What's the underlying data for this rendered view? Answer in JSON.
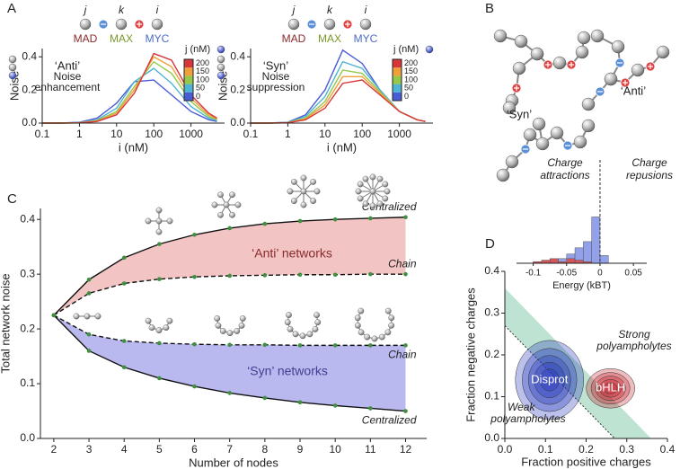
{
  "panel_labels": [
    "A",
    "B",
    "C",
    "D"
  ],
  "diagram_b": {
    "labels": [
      "‘Syn’",
      "‘Anti’"
    ]
  },
  "chart_data": [
    {
      "type": "line",
      "xlabel": "i (nM)",
      "ylabel": "Noise",
      "xlog": true,
      "x": [
        0.1,
        0.3,
        1,
        3,
        10,
        30,
        100,
        300,
        1000,
        3000,
        5000
      ],
      "xlim": [
        0.1,
        8000
      ],
      "xticks": [
        0.1,
        1,
        10,
        100,
        1000
      ],
      "ylim": [
        0,
        0.45
      ],
      "yticks": [
        {
          "value": 0,
          "label": "0.0"
        },
        0.2,
        0.4
      ],
      "legend": "colorbar",
      "legend_title": "j (nM)",
      "annotations": [
        "‘Anti’",
        "Noise",
        "enhancement"
      ],
      "schematic_labels": [
        "j",
        "k",
        "i",
        "MAD",
        "MAX",
        "MYC"
      ],
      "series": [
        {
          "name": "0",
          "color": "#4a5bd6",
          "values": [
            0,
            0,
            0.005,
            0.03,
            0.12,
            0.25,
            0.26,
            0.17,
            0.07,
            0.02,
            0.01
          ]
        },
        {
          "name": "50",
          "color": "#4fb3d3",
          "values": [
            0,
            0,
            0.003,
            0.02,
            0.09,
            0.25,
            0.33,
            0.24,
            0.1,
            0.03,
            0.015
          ]
        },
        {
          "name": "100",
          "color": "#95c84a",
          "values": [
            0,
            0,
            0.002,
            0.015,
            0.07,
            0.22,
            0.37,
            0.3,
            0.13,
            0.04,
            0.02
          ]
        },
        {
          "name": "150",
          "color": "#efa03a",
          "values": [
            0,
            0,
            0.002,
            0.012,
            0.06,
            0.2,
            0.4,
            0.34,
            0.15,
            0.05,
            0.025
          ]
        },
        {
          "name": "200",
          "color": "#d8373a",
          "values": [
            0,
            0,
            0.001,
            0.01,
            0.05,
            0.18,
            0.42,
            0.38,
            0.17,
            0.06,
            0.03
          ]
        }
      ]
    },
    {
      "type": "line",
      "xlabel": "i (nM)",
      "ylabel": "Noise",
      "xlog": true,
      "x": [
        0.1,
        0.3,
        1,
        3,
        10,
        30,
        100,
        300,
        1000,
        3000,
        5000
      ],
      "xlim": [
        0.1,
        8000
      ],
      "xticks": [
        0.1,
        1,
        10,
        100,
        1000
      ],
      "ylim": [
        0,
        0.45
      ],
      "yticks": [
        {
          "value": 0,
          "label": "0.0"
        },
        0.2,
        0.4
      ],
      "legend": "colorbar",
      "legend_title": "j (nM)",
      "annotations": [
        "‘Syn’",
        "Noise",
        "suppression"
      ],
      "schematic_labels": [
        "j",
        "k",
        "i",
        "MAD",
        "MAX",
        "MYC"
      ],
      "series": [
        {
          "name": "0",
          "color": "#4a5bd6",
          "values": [
            0,
            0,
            0.005,
            0.05,
            0.2,
            0.44,
            0.36,
            0.2,
            0.07,
            0.02,
            0.01
          ]
        },
        {
          "name": "50",
          "color": "#4fb3d3",
          "values": [
            0,
            0,
            0.004,
            0.04,
            0.16,
            0.37,
            0.33,
            0.2,
            0.07,
            0.02,
            0.01
          ]
        },
        {
          "name": "100",
          "color": "#95c84a",
          "values": [
            0,
            0,
            0.003,
            0.03,
            0.13,
            0.32,
            0.3,
            0.19,
            0.07,
            0.02,
            0.01
          ]
        },
        {
          "name": "150",
          "color": "#efa03a",
          "values": [
            0,
            0,
            0.002,
            0.025,
            0.11,
            0.28,
            0.28,
            0.18,
            0.07,
            0.02,
            0.01
          ]
        },
        {
          "name": "200",
          "color": "#d8373a",
          "values": [
            0,
            0,
            0.002,
            0.02,
            0.09,
            0.24,
            0.26,
            0.17,
            0.07,
            0.02,
            0.01
          ]
        }
      ]
    },
    {
      "type": "line",
      "xlabel": "Number of nodes",
      "ylabel": "Total network noise",
      "x": [
        2,
        3,
        4,
        5,
        6,
        7,
        8,
        9,
        10,
        11,
        12
      ],
      "xlim": [
        1.62,
        12.6
      ],
      "xticks": [
        2,
        3,
        4,
        5,
        6,
        7,
        8,
        9,
        10,
        11,
        12
      ],
      "ylim": [
        0,
        0.42
      ],
      "yticks": [
        {
          "value": 0,
          "label": "0.0"
        },
        0.1,
        0.2,
        0.3,
        0.4
      ],
      "marker_color": "#3f8f3f",
      "fill_colors": [
        "#f2c4c4",
        "#b9b9f0"
      ],
      "annotations": [
        "‘Anti’ networks",
        "‘Syn’ networks"
      ],
      "series": [
        {
          "name": "Centralized",
          "color": "#111111",
          "dash": false,
          "values": [
            0.225,
            0.29,
            0.33,
            0.355,
            0.372,
            0.384,
            0.392,
            0.397,
            0.4,
            0.402,
            0.404
          ]
        },
        {
          "name": "Chain",
          "color": "#111111",
          "dash": true,
          "values": [
            0.225,
            0.265,
            0.283,
            0.291,
            0.295,
            0.297,
            0.298,
            0.299,
            0.299,
            0.3,
            0.3
          ]
        },
        {
          "name": "Chain",
          "color": "#111111",
          "dash": true,
          "values": [
            0.225,
            0.19,
            0.178,
            0.174,
            0.172,
            0.171,
            0.171,
            0.17,
            0.17,
            0.17,
            0.17
          ]
        },
        {
          "name": "Centralized",
          "color": "#111111",
          "dash": false,
          "values": [
            0.225,
            0.16,
            0.13,
            0.11,
            0.095,
            0.083,
            0.074,
            0.066,
            0.06,
            0.055,
            0.05
          ]
        }
      ]
    },
    {
      "type": "histogram",
      "xlabel": "Energy (kBT)",
      "bins": [
        -0.1,
        -0.0875,
        -0.075,
        -0.0625,
        -0.05,
        -0.0375,
        -0.025,
        -0.0125,
        0,
        0.0125
      ],
      "xlim": [
        -0.125,
        0.07
      ],
      "xticks": [
        -0.1,
        -0.05,
        0,
        0.05
      ],
      "ylim": [
        0,
        32
      ],
      "ref_line": 0,
      "annotations": [
        "Charge",
        "attractions",
        "Charge",
        "repusions"
      ],
      "series": [
        {
          "name": "Disprot",
          "color": "#93a0ea",
          "values": [
            1,
            1,
            2,
            3,
            6,
            10,
            14,
            30,
            5
          ]
        },
        {
          "name": "bHLH",
          "color": "#d6555b",
          "values": [
            1,
            2,
            3,
            1,
            3,
            2,
            1,
            0,
            0
          ]
        }
      ]
    },
    {
      "type": "density",
      "xlabel": "Fraction positive charges",
      "ylabel": "Fraction negative charges",
      "xlim": [
        0,
        0.4
      ],
      "xticks": [
        {
          "value": 0,
          "label": "0.0"
        },
        0.1,
        0.2,
        0.3,
        0.4
      ],
      "ylim": [
        0,
        0.4
      ],
      "yticks": [
        {
          "value": 0,
          "label": "0.0"
        },
        0.1,
        0.2,
        0.3,
        0.4
      ],
      "band": [
        0.27,
        0.36
      ],
      "band_color": "#bfe3d2",
      "annotations": [
        "Strong",
        "polyampholytes",
        "Weak",
        "polyampholytes"
      ],
      "series": [
        {
          "name": "Disprot",
          "color": "#1f32b8",
          "center": [
            0.11,
            0.14
          ]
        },
        {
          "name": "bHLH",
          "color": "#c8202a",
          "center": [
            0.26,
            0.12
          ]
        }
      ]
    }
  ]
}
